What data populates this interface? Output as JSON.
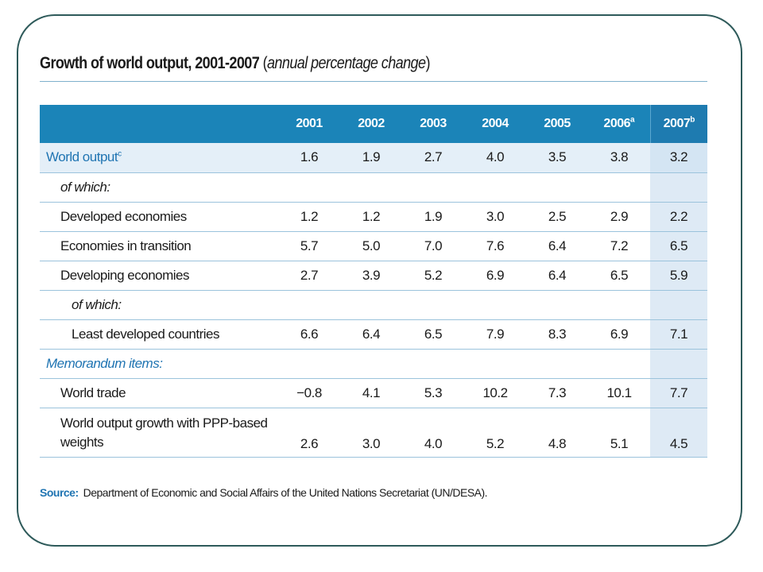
{
  "title": {
    "main": "Growth of world output, 2001-2007",
    "paren_open": " (",
    "note": "annual percentage change",
    "paren_close": ")"
  },
  "table": {
    "headers": [
      {
        "year": "2001",
        "sup": ""
      },
      {
        "year": "2002",
        "sup": ""
      },
      {
        "year": "2003",
        "sup": ""
      },
      {
        "year": "2004",
        "sup": ""
      },
      {
        "year": "2005",
        "sup": ""
      },
      {
        "year": "2006",
        "sup": "a"
      },
      {
        "year": "2007",
        "sup": "b"
      }
    ],
    "rows": [
      {
        "label": "World output",
        "sup": "c",
        "style": "highlight",
        "values": [
          "1.6",
          "1.9",
          "2.7",
          "4.0",
          "3.5",
          "3.8",
          "3.2"
        ]
      },
      {
        "label": "of which:",
        "style": "subhead",
        "values": []
      },
      {
        "label": "Developed economies",
        "style": "indent1",
        "values": [
          "1.2",
          "1.2",
          "1.9",
          "3.0",
          "2.5",
          "2.9",
          "2.2"
        ]
      },
      {
        "label": "Economies in transition",
        "style": "indent1",
        "values": [
          "5.7",
          "5.0",
          "7.0",
          "7.6",
          "6.4",
          "7.2",
          "6.5"
        ]
      },
      {
        "label": "Developing economies",
        "style": "indent1",
        "values": [
          "2.7",
          "3.9",
          "5.2",
          "6.9",
          "6.4",
          "6.5",
          "5.9"
        ]
      },
      {
        "label": "of which:",
        "style": "subhead2",
        "values": []
      },
      {
        "label": "Least developed countries",
        "style": "indent2",
        "values": [
          "6.6",
          "6.4",
          "6.5",
          "7.9",
          "8.3",
          "6.9",
          "7.1"
        ]
      },
      {
        "label": "Memorandum items:",
        "style": "memo",
        "values": []
      },
      {
        "label": "World trade",
        "style": "indent1",
        "values": [
          "−0.8",
          "4.1",
          "5.3",
          "10.2",
          "7.3",
          "10.1",
          "7.7"
        ]
      },
      {
        "label": "World output growth with PPP-based weights",
        "style": "tall",
        "values": [
          "2.6",
          "3.0",
          "4.0",
          "5.2",
          "4.8",
          "5.1",
          "4.5"
        ]
      }
    ]
  },
  "source": {
    "label": "Source:",
    "text": "Department of Economic and Social Affairs of the United Nations Secretariat (UN/DESA)."
  },
  "colors": {
    "header_bg": "#1b84b8",
    "highlight_row_bg": "#e4eff8",
    "last_col_bg": "#deeaf5",
    "accent_text": "#1f74b2",
    "frame_border": "#2e5a5a"
  }
}
